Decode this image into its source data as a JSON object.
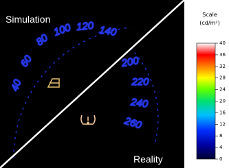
{
  "labels": {
    "simulation": "Simulation",
    "reality": "Reality"
  },
  "gauge": {
    "numbers": [
      "40",
      "60",
      "80",
      "100",
      "120",
      "140",
      "200",
      "220",
      "240",
      "260"
    ]
  },
  "scale": {
    "title": "Scale",
    "unit": "(cd/m²)",
    "lim": [
      0,
      40
    ],
    "ticks": [
      0,
      4,
      8,
      12,
      16,
      20,
      24,
      28,
      32,
      36,
      40
    ]
  }
}
